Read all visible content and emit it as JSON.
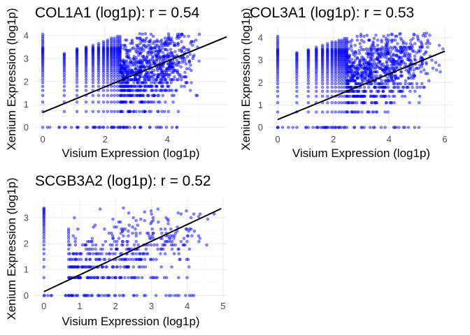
{
  "chart_data": [
    {
      "type": "scatter",
      "title": "COL1A1 (log1p): r = 0.54",
      "xlabel": "Visium Expression (log1p)",
      "ylabel": "Xenium Expression (log1p)",
      "xlim": [
        -0.25,
        5.9
      ],
      "ylim": [
        -0.2,
        4.4
      ],
      "xticks": [
        0,
        2,
        4
      ],
      "yticks": [
        0,
        1,
        2,
        3,
        4
      ],
      "r": 0.54,
      "fit_line": [
        [
          0,
          0.65
        ],
        [
          5.9,
          3.95
        ]
      ],
      "point_color": "#0000FF",
      "line_color": "#000000",
      "grid": true,
      "visium_levels": [
        0,
        0.69,
        1.1,
        1.39,
        1.61,
        1.79,
        1.95,
        2.08,
        2.2,
        2.3,
        2.4,
        2.48
      ],
      "xenium_levels": [
        0,
        0.69,
        1.1,
        1.39,
        1.61,
        1.79,
        1.95,
        2.08,
        2.2,
        2.3,
        2.4,
        2.48,
        2.56,
        2.64,
        2.71,
        2.77,
        2.83,
        2.89,
        2.94,
        3.0,
        3.04,
        3.09,
        3.14,
        3.18,
        3.22,
        3.26,
        3.3,
        3.33,
        3.37,
        3.4,
        3.43,
        3.47,
        3.5,
        3.58,
        3.66,
        3.74,
        3.81,
        3.89,
        3.97,
        4.06
      ],
      "cloud": {
        "x_max": 5.1,
        "y_mean_intercept": 1.1,
        "y_mean_slope": 0.42,
        "y_spread": 0.85,
        "y_max": 4.1
      }
    },
    {
      "type": "scatter",
      "title": "COL3A1 (log1p): r = 0.53",
      "xlabel": "Visium Expression (log1p)",
      "ylabel": "Xenium Expression (log1p)",
      "xlim": [
        -0.3,
        6.3
      ],
      "ylim": [
        -0.2,
        4.5
      ],
      "xticks": [
        0,
        2,
        4,
        6
      ],
      "yticks": [
        0,
        1,
        2,
        3,
        4
      ],
      "r": 0.53,
      "fit_line": [
        [
          0,
          0.35
        ],
        [
          6.0,
          3.4
        ]
      ],
      "point_color": "#0000FF",
      "line_color": "#000000",
      "grid": true,
      "visium_levels": [
        0,
        0.69,
        1.1,
        1.39,
        1.61,
        1.79,
        1.95,
        2.08,
        2.2,
        2.3,
        2.4,
        2.48
      ],
      "xenium_levels": [
        0,
        0.69,
        1.1,
        1.39,
        1.61,
        1.79,
        1.95,
        2.08,
        2.2,
        2.3,
        2.4,
        2.48,
        2.56,
        2.64,
        2.71,
        2.77,
        2.83,
        2.89,
        2.94,
        3.0,
        3.04,
        3.09,
        3.14,
        3.18,
        3.22,
        3.26,
        3.3,
        3.33,
        3.37,
        3.4,
        3.43,
        3.47,
        3.5,
        3.58,
        3.66,
        3.74,
        3.81,
        3.89,
        3.97,
        4.06
      ],
      "cloud": {
        "x_max": 6.0,
        "y_mean_intercept": 1.2,
        "y_mean_slope": 0.38,
        "y_spread": 0.85,
        "y_max": 4.2
      }
    },
    {
      "type": "scatter",
      "title": "SCGB3A2 (log1p): r = 0.52",
      "xlabel": "Visium Expression (log1p)",
      "ylabel": "Xenium Expression (log1p)",
      "xlim": [
        -0.25,
        5.1
      ],
      "ylim": [
        -0.15,
        3.75
      ],
      "xticks": [
        0,
        1,
        2,
        3,
        4,
        5
      ],
      "yticks": [
        0,
        1,
        2,
        3
      ],
      "r": 0.52,
      "fit_line": [
        [
          0,
          0.15
        ],
        [
          4.95,
          3.35
        ]
      ],
      "point_color": "#0000FF",
      "line_color": "#000000",
      "grid": true,
      "visium_levels": [
        0,
        0.69
      ],
      "xenium_levels": [
        0,
        0.69,
        1.1,
        1.39,
        1.61,
        1.79,
        1.95,
        2.08,
        2.2,
        2.3,
        2.4,
        2.48,
        2.56,
        2.64,
        2.71,
        2.77,
        2.83,
        2.89,
        2.94,
        3.0,
        3.04,
        3.09,
        3.14,
        3.18,
        3.22,
        3.26,
        3.3,
        3.33,
        3.37,
        3.43,
        3.5,
        3.58,
        3.66
      ],
      "cloud": {
        "x_max": 4.95,
        "y_mean_intercept": 0.7,
        "y_mean_slope": 0.38,
        "y_spread": 0.75,
        "y_max": 3.4
      }
    }
  ]
}
